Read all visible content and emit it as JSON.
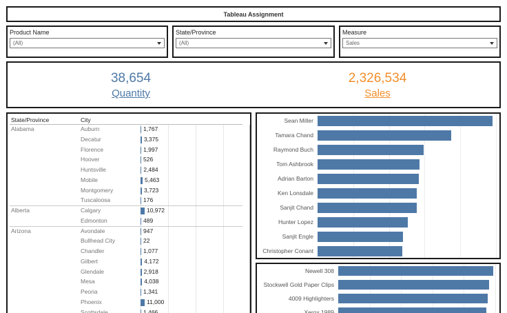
{
  "dashboard": {
    "title": "Tableau Assignment"
  },
  "filters": [
    {
      "label": "Product Name",
      "value": "(All)"
    },
    {
      "label": "State/Province",
      "value": "(All)"
    },
    {
      "label": "Measure",
      "value": "Sales"
    }
  ],
  "kpis": {
    "quantity": {
      "value": "38,654",
      "label": "Quantity",
      "color": "#4e79a7"
    },
    "sales": {
      "value": "2,326,534",
      "label": "Sales",
      "color": "#f28e2b"
    }
  },
  "table": {
    "headers": {
      "state": "State/Province",
      "city": "City"
    },
    "max_value": 11000,
    "rows": [
      {
        "state": "Alabama",
        "city": "Auburn",
        "value": 1767,
        "display": "1,767"
      },
      {
        "state": "",
        "city": "Decatur",
        "value": 3375,
        "display": "3,375"
      },
      {
        "state": "",
        "city": "Florence",
        "value": 1997,
        "display": "1,997"
      },
      {
        "state": "",
        "city": "Hoover",
        "value": 526,
        "display": "526"
      },
      {
        "state": "",
        "city": "Huntsville",
        "value": 2484,
        "display": "2,484"
      },
      {
        "state": "",
        "city": "Mobile",
        "value": 5463,
        "display": "5,463"
      },
      {
        "state": "",
        "city": "Montgomery",
        "value": 3723,
        "display": "3,723"
      },
      {
        "state": "",
        "city": "Tuscaloosa",
        "value": 176,
        "display": "176",
        "group_end": true
      },
      {
        "state": "Alberta",
        "city": "Calgary",
        "value": 10972,
        "display": "10,972"
      },
      {
        "state": "",
        "city": "Edmonton",
        "value": 489,
        "display": "489",
        "group_end": true
      },
      {
        "state": "Arizona",
        "city": "Avondale",
        "value": 947,
        "display": "947"
      },
      {
        "state": "",
        "city": "Bullhead City",
        "value": 22,
        "display": "22"
      },
      {
        "state": "",
        "city": "Chandler",
        "value": 1077,
        "display": "1,077"
      },
      {
        "state": "",
        "city": "Gilbert",
        "value": 4172,
        "display": "4,172"
      },
      {
        "state": "",
        "city": "Glendale",
        "value": 2918,
        "display": "2,918"
      },
      {
        "state": "",
        "city": "Mesa",
        "value": 4038,
        "display": "4,038"
      },
      {
        "state": "",
        "city": "Peoria",
        "value": 1341,
        "display": "1,341"
      },
      {
        "state": "",
        "city": "Phoenix",
        "value": 11000,
        "display": "11,000"
      },
      {
        "state": "",
        "city": "Scottsdale",
        "value": 1466,
        "display": "1,466"
      }
    ]
  },
  "chart_data": [
    {
      "type": "bar",
      "orientation": "horizontal",
      "categories": [
        "Sean Miller",
        "Tamara Chand",
        "Raymond Buch",
        "Tom Ashbrook",
        "Adrian Barton",
        "Ken Lonsdale",
        "Sanjit Chand",
        "Hunter Lopez",
        "Sanjit Engle",
        "Christopher Conant"
      ],
      "values": [
        25043,
        19052,
        15117,
        14595,
        14473,
        14175,
        14142,
        12873,
        12209,
        12129
      ],
      "xlim": [
        0,
        25500
      ],
      "color": "#4e79a7"
    },
    {
      "type": "bar",
      "orientation": "horizontal",
      "categories": [
        "Newell 308",
        "Stockwell Gold Paper Clips",
        "4009 Highlighters",
        "Xerox 1989"
      ],
      "values": [
        14200,
        13800,
        13700,
        13600
      ],
      "xlim": [
        0,
        14400
      ],
      "color": "#4e79a7"
    }
  ]
}
